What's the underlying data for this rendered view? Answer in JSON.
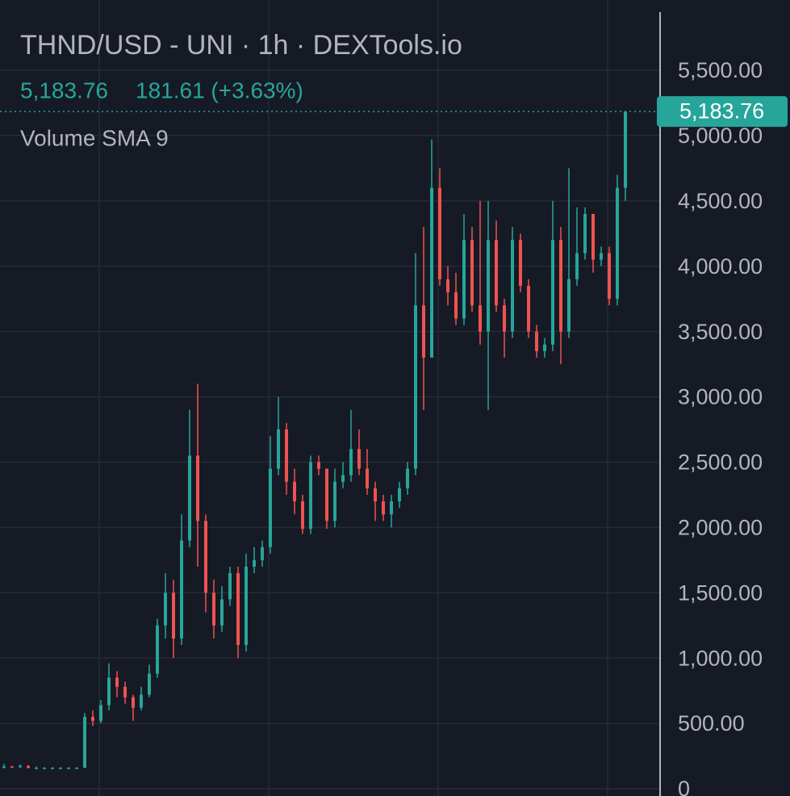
{
  "chart_data": {
    "type": "candlestick",
    "title": "THND/USD - UNI · 1h · DEXTools.io",
    "last_price": {
      "value": 5183.76,
      "label": "5,183.76"
    },
    "change_label": "181.61 (+3.63%)",
    "indicator": "Volume SMA 9",
    "up_color": "#26a69a",
    "down_color": "#ef5350",
    "grid": true,
    "ylim": [
      -55.6,
      6037.6
    ],
    "yticks": [
      0,
      {
        "value": 500,
        "label": "500.00"
      },
      {
        "value": 1000,
        "label": "1,000.00"
      },
      {
        "value": 1500,
        "label": "1,500.00"
      },
      {
        "value": 2000,
        "label": "2,000.00"
      },
      {
        "value": 2500,
        "label": "2,500.00"
      },
      {
        "value": 3000,
        "label": "3,000.00"
      },
      {
        "value": 3500,
        "label": "3,500.00"
      },
      {
        "value": 4000,
        "label": "4,000.00"
      },
      {
        "value": 4500,
        "label": "4,500.00"
      },
      {
        "value": 5000,
        "label": "5,000.00"
      },
      {
        "value": 5500,
        "label": "5,500.00"
      }
    ],
    "candles": {
      "open": [
        165,
        170,
        165,
        175,
        160,
        160,
        160,
        160,
        160,
        160,
        160,
        550,
        520,
        640,
        850,
        780,
        700,
        620,
        720,
        880,
        1250,
        1500,
        1150,
        1900,
        2550,
        2050,
        1500,
        1250,
        1450,
        1650,
        1100,
        1700,
        1750,
        1850,
        2450,
        2750,
        2350,
        2200,
        1990,
        2500,
        2450,
        2050,
        2350,
        2400,
        2600,
        2450,
        2300,
        2200,
        2100,
        2200,
        2300,
        2450,
        3700,
        3300,
        4600,
        3900,
        3800,
        3600,
        4200,
        3700,
        3500,
        4200,
        3700,
        3500,
        4200,
        3850,
        3500,
        3350,
        3400,
        4200,
        3500,
        3900,
        4100,
        4400,
        4050,
        4100,
        3750,
        4600
      ],
      "high": [
        190,
        175,
        185,
        180,
        170,
        165,
        165,
        165,
        165,
        165,
        580,
        600,
        680,
        960,
        900,
        820,
        720,
        780,
        950,
        1300,
        1650,
        1600,
        2100,
        2900,
        3100,
        2100,
        1600,
        1550,
        1700,
        1700,
        1800,
        1850,
        1900,
        2700,
        3000,
        2800,
        2450,
        2250,
        2550,
        2550,
        2450,
        2450,
        2500,
        2900,
        2750,
        2600,
        2350,
        2250,
        2250,
        2350,
        2500,
        4100,
        4300,
        4970,
        4750,
        4000,
        3950,
        4400,
        4300,
        4500,
        4500,
        4350,
        3750,
        4300,
        4250,
        3900,
        3550,
        3450,
        4500,
        4300,
        4750,
        4450,
        4450,
        4400,
        4150,
        4150,
        4700,
        5183.76
      ],
      "low": [
        155,
        160,
        160,
        155,
        155,
        155,
        155,
        155,
        155,
        155,
        160,
        480,
        500,
        600,
        700,
        650,
        520,
        600,
        700,
        850,
        1150,
        1000,
        1100,
        1850,
        1700,
        1350,
        1150,
        1200,
        1400,
        1000,
        1050,
        1650,
        1700,
        1800,
        2400,
        2250,
        2100,
        1950,
        1950,
        2400,
        1990,
        2000,
        2300,
        2350,
        2400,
        2250,
        2050,
        2050,
        2000,
        2150,
        2250,
        2400,
        2900,
        3300,
        3850,
        3700,
        3550,
        3550,
        3650,
        3400,
        2900,
        3650,
        3300,
        3450,
        3800,
        3450,
        3300,
        3300,
        3350,
        3250,
        3450,
        3850,
        4050,
        3950,
        4000,
        3700,
        3700,
        4500
      ],
      "close": [
        170,
        165,
        175,
        160,
        160,
        160,
        160,
        160,
        160,
        160,
        550,
        520,
        640,
        850,
        780,
        700,
        620,
        720,
        880,
        1250,
        1500,
        1150,
        1900,
        2550,
        2050,
        1500,
        1250,
        1450,
        1650,
        1100,
        1700,
        1750,
        1850,
        2450,
        2750,
        2350,
        2200,
        1990,
        2500,
        2450,
        2050,
        2350,
        2400,
        2600,
        2450,
        2300,
        2200,
        2100,
        2200,
        2300,
        2450,
        3700,
        3300,
        4600,
        3900,
        3800,
        3600,
        4200,
        3700,
        3500,
        4200,
        3700,
        3500,
        4200,
        3850,
        3500,
        3350,
        3400,
        4200,
        3500,
        3900,
        4100,
        4400,
        4050,
        4100,
        3750,
        4600,
        5183.76
      ]
    }
  }
}
